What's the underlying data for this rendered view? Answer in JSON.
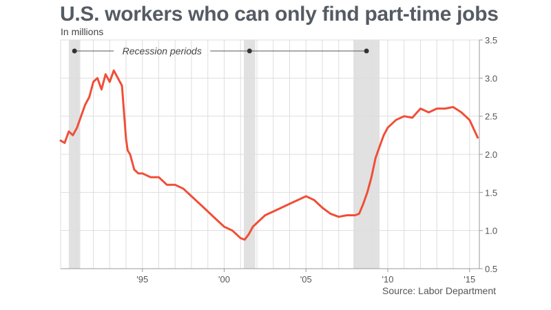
{
  "header": {
    "title": "U.S. workers who can only find part-time jobs",
    "subtitle": "In millions"
  },
  "footer": {
    "source": "Source: Labor Department"
  },
  "colors": {
    "line": "#f04e37",
    "recession": "#e1e1e1",
    "grid": "#dedede",
    "axis": "#999999"
  },
  "chart_data": {
    "type": "line",
    "title": "U.S. workers who can only find part-time jobs",
    "subtitle": "In millions",
    "xlabel": "",
    "ylabel": "",
    "xlim": [
      1990.0,
      2015.6
    ],
    "ylim": [
      0.5,
      3.5
    ],
    "y_ticks": [
      "0.5",
      "1.0",
      "1.5",
      "2.0",
      "2.5",
      "3.0",
      "3.5"
    ],
    "x_ticks": [
      {
        "value": 1995,
        "label": "'95"
      },
      {
        "value": 2000,
        "label": "'00"
      },
      {
        "value": 2005,
        "label": "'05"
      },
      {
        "value": 2010,
        "label": "'10"
      },
      {
        "value": 2015,
        "label": "'15"
      }
    ],
    "recession_label": "Recession periods",
    "recessions": [
      [
        1990.5,
        1991.2
      ],
      [
        2001.2,
        2001.9
      ],
      [
        2007.9,
        2009.5
      ]
    ],
    "grid": true,
    "series": [
      {
        "x": [
          1990.0,
          1990.25,
          1990.5,
          1990.75,
          1991.0,
          1991.25,
          1991.5,
          1991.75,
          1992.0,
          1992.25,
          1992.5,
          1992.75,
          1993.0,
          1993.25,
          1993.5,
          1993.75,
          1994.0,
          1994.1,
          1994.25,
          1994.5,
          1994.75,
          1995.0,
          1995.5,
          1996.0,
          1996.5,
          1997.0,
          1997.5,
          1998.0,
          1998.5,
          1999.0,
          1999.5,
          2000.0,
          2000.5,
          2001.0,
          2001.25,
          2001.5,
          2001.75,
          2002.0,
          2002.5,
          2003.0,
          2003.5,
          2004.0,
          2004.5,
          2005.0,
          2005.5,
          2006.0,
          2006.5,
          2007.0,
          2007.5,
          2008.0,
          2008.25,
          2008.5,
          2008.75,
          2009.0,
          2009.25,
          2009.5,
          2009.75,
          2010.0,
          2010.5,
          2011.0,
          2011.5,
          2012.0,
          2012.5,
          2013.0,
          2013.5,
          2014.0,
          2014.5,
          2015.0,
          2015.5
        ],
        "values": [
          2.18,
          2.15,
          2.3,
          2.25,
          2.35,
          2.5,
          2.65,
          2.75,
          2.95,
          3.0,
          2.85,
          3.05,
          2.95,
          3.1,
          3.0,
          2.9,
          2.2,
          2.05,
          2.0,
          1.8,
          1.75,
          1.75,
          1.7,
          1.7,
          1.6,
          1.6,
          1.55,
          1.45,
          1.35,
          1.25,
          1.15,
          1.05,
          1.0,
          0.9,
          0.88,
          0.95,
          1.05,
          1.1,
          1.2,
          1.25,
          1.3,
          1.35,
          1.4,
          1.45,
          1.4,
          1.3,
          1.22,
          1.18,
          1.2,
          1.2,
          1.22,
          1.35,
          1.5,
          1.7,
          1.95,
          2.1,
          2.25,
          2.35,
          2.45,
          2.5,
          2.48,
          2.6,
          2.55,
          2.6,
          2.6,
          2.62,
          2.55,
          2.45,
          2.22
        ]
      }
    ]
  }
}
